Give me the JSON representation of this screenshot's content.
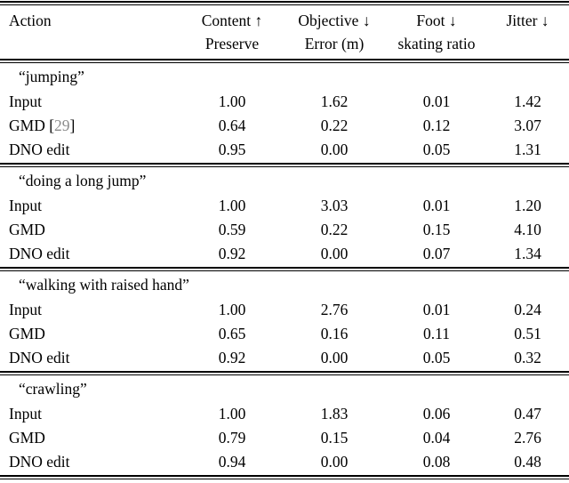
{
  "table": {
    "header": {
      "action": "Action",
      "columns": [
        {
          "line1": "Content ↑",
          "line2": "Preserve"
        },
        {
          "line1": "Objective ↓",
          "line2": "Error (m)"
        },
        {
          "line1": "Foot ↓",
          "line2": "skating ratio"
        },
        {
          "line1": "Jitter ↓",
          "line2": ""
        }
      ]
    },
    "groups": [
      {
        "label": "“jumping”",
        "rows": [
          {
            "method": "Input",
            "values": [
              "1.00",
              "1.62",
              "0.01",
              "1.42"
            ]
          },
          {
            "method": "GMD",
            "cite_open": " [",
            "cite_num": "29",
            "cite_close": "]",
            "values": [
              "0.64",
              "0.22",
              "0.12",
              "3.07"
            ]
          },
          {
            "method": "DNO edit",
            "values": [
              "0.95",
              "0.00",
              "0.05",
              "1.31"
            ]
          }
        ]
      },
      {
        "label": "“doing a long jump”",
        "rows": [
          {
            "method": "Input",
            "values": [
              "1.00",
              "3.03",
              "0.01",
              "1.20"
            ]
          },
          {
            "method": "GMD",
            "values": [
              "0.59",
              "0.22",
              "0.15",
              "4.10"
            ]
          },
          {
            "method": "DNO edit",
            "values": [
              "0.92",
              "0.00",
              "0.07",
              "1.34"
            ]
          }
        ]
      },
      {
        "label": "“walking with raised hand”",
        "rows": [
          {
            "method": "Input",
            "values": [
              "1.00",
              "2.76",
              "0.01",
              "0.24"
            ]
          },
          {
            "method": "GMD",
            "values": [
              "0.65",
              "0.16",
              "0.11",
              "0.51"
            ]
          },
          {
            "method": "DNO edit",
            "values": [
              "0.92",
              "0.00",
              "0.05",
              "0.32"
            ]
          }
        ]
      },
      {
        "label": "“crawling”",
        "rows": [
          {
            "method": "Input",
            "values": [
              "1.00",
              "1.83",
              "0.06",
              "0.47"
            ]
          },
          {
            "method": "GMD",
            "values": [
              "0.79",
              "0.15",
              "0.04",
              "2.76"
            ]
          },
          {
            "method": "DNO edit",
            "values": [
              "0.94",
              "0.00",
              "0.08",
              "0.48"
            ]
          }
        ]
      }
    ]
  },
  "colors": {
    "text": "#000000",
    "background": "#ffffff",
    "rule": "#000000",
    "citation": "#8c8c8c"
  }
}
